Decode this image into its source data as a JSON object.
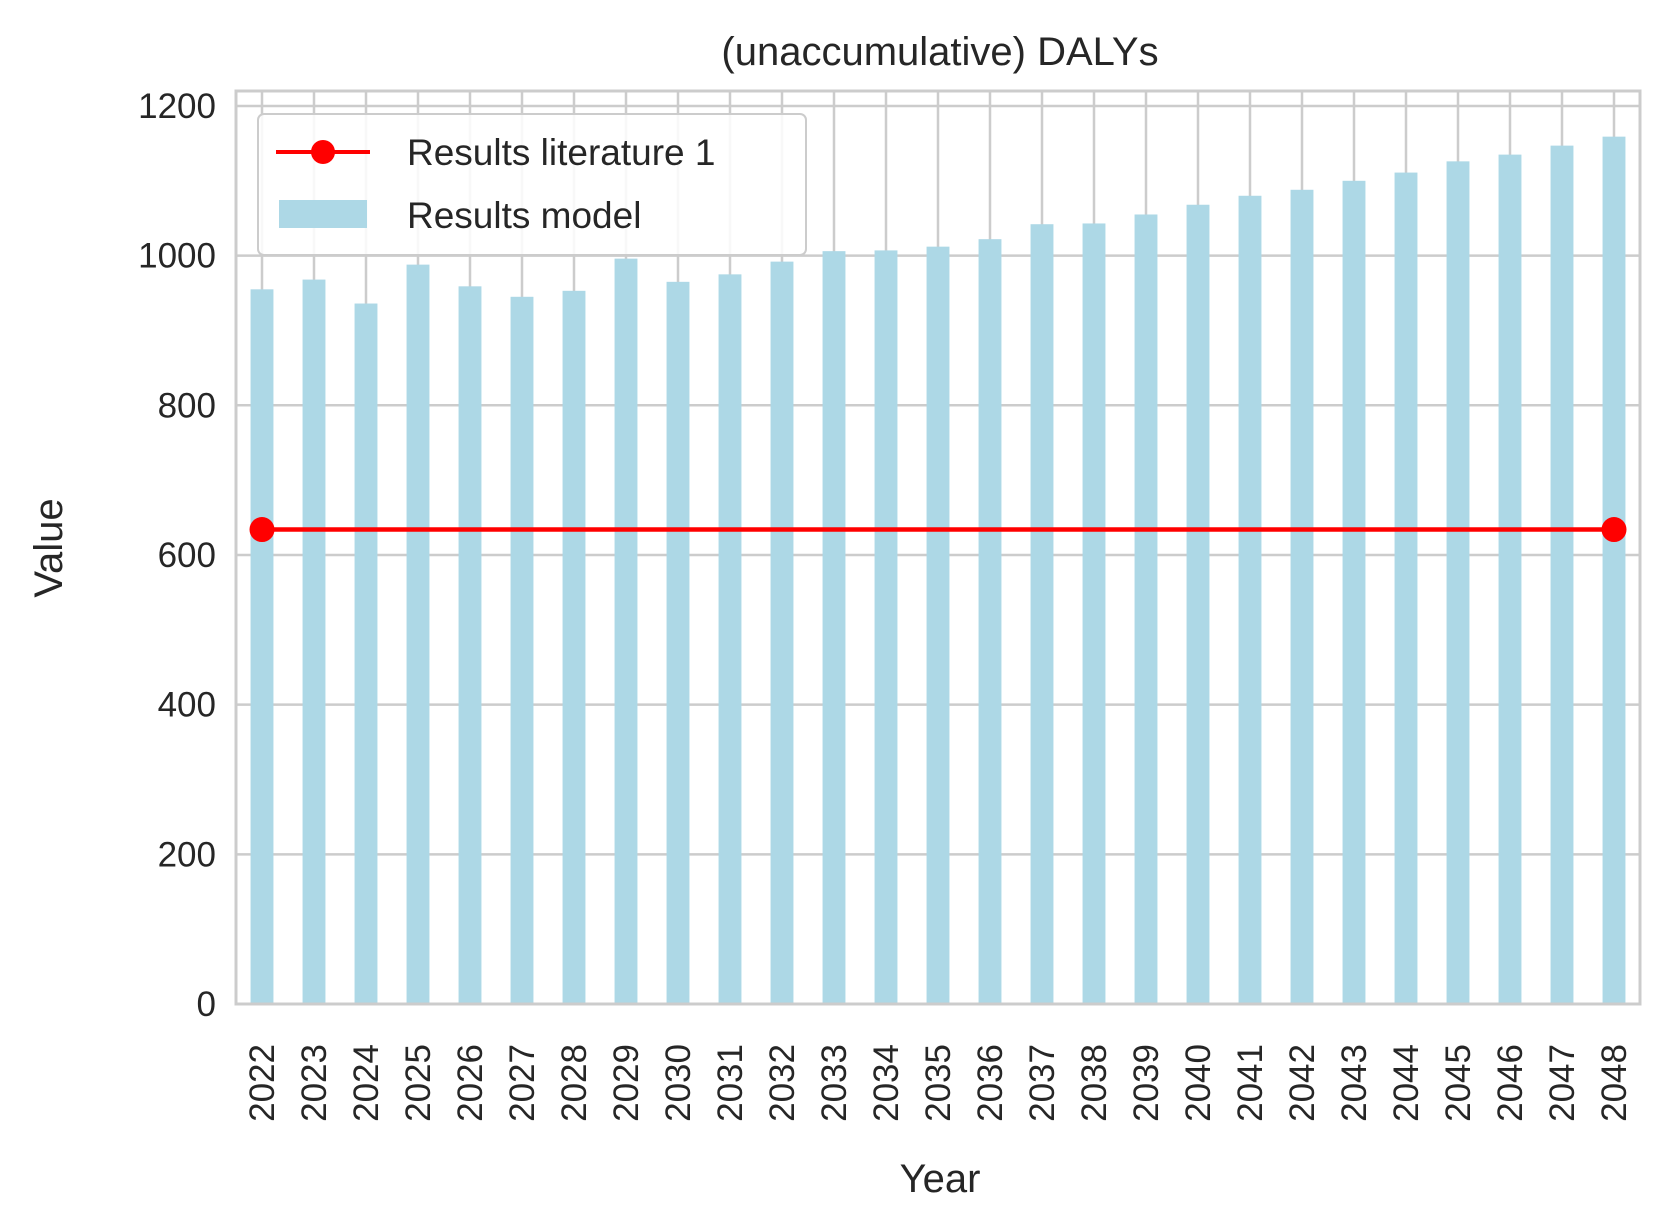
{
  "chart_data": {
    "type": "bar",
    "title": "(unaccumulative) DALYs",
    "xlabel": "Year",
    "ylabel": "Value",
    "categories": [
      "2022",
      "2023",
      "2024",
      "2025",
      "2026",
      "2027",
      "2028",
      "2029",
      "2030",
      "2031",
      "2032",
      "2033",
      "2034",
      "2035",
      "2036",
      "2037",
      "2038",
      "2039",
      "2040",
      "2041",
      "2042",
      "2043",
      "2044",
      "2045",
      "2046",
      "2047",
      "2048"
    ],
    "ylim": [
      0,
      1220
    ],
    "yticks": [
      0,
      200,
      400,
      600,
      800,
      1000,
      1200
    ],
    "ytick_labels": [
      "0",
      "200",
      "400",
      "600",
      "800",
      "1000",
      "1200"
    ],
    "grid": true,
    "legend_position": "upper left",
    "series": [
      {
        "name": "Results model",
        "kind": "bar",
        "color": "#add8e6",
        "values": [
          955,
          968,
          936,
          988,
          959,
          945,
          953,
          996,
          965,
          975,
          992,
          1006,
          1007,
          1012,
          1022,
          1042,
          1043,
          1055,
          1068,
          1080,
          1088,
          1100,
          1111,
          1126,
          1135,
          1147,
          1159
        ]
      },
      {
        "name": "Results literature 1",
        "kind": "line",
        "color": "#ff0000",
        "x": [
          "2022",
          "2048"
        ],
        "values": [
          634,
          634
        ]
      }
    ]
  }
}
